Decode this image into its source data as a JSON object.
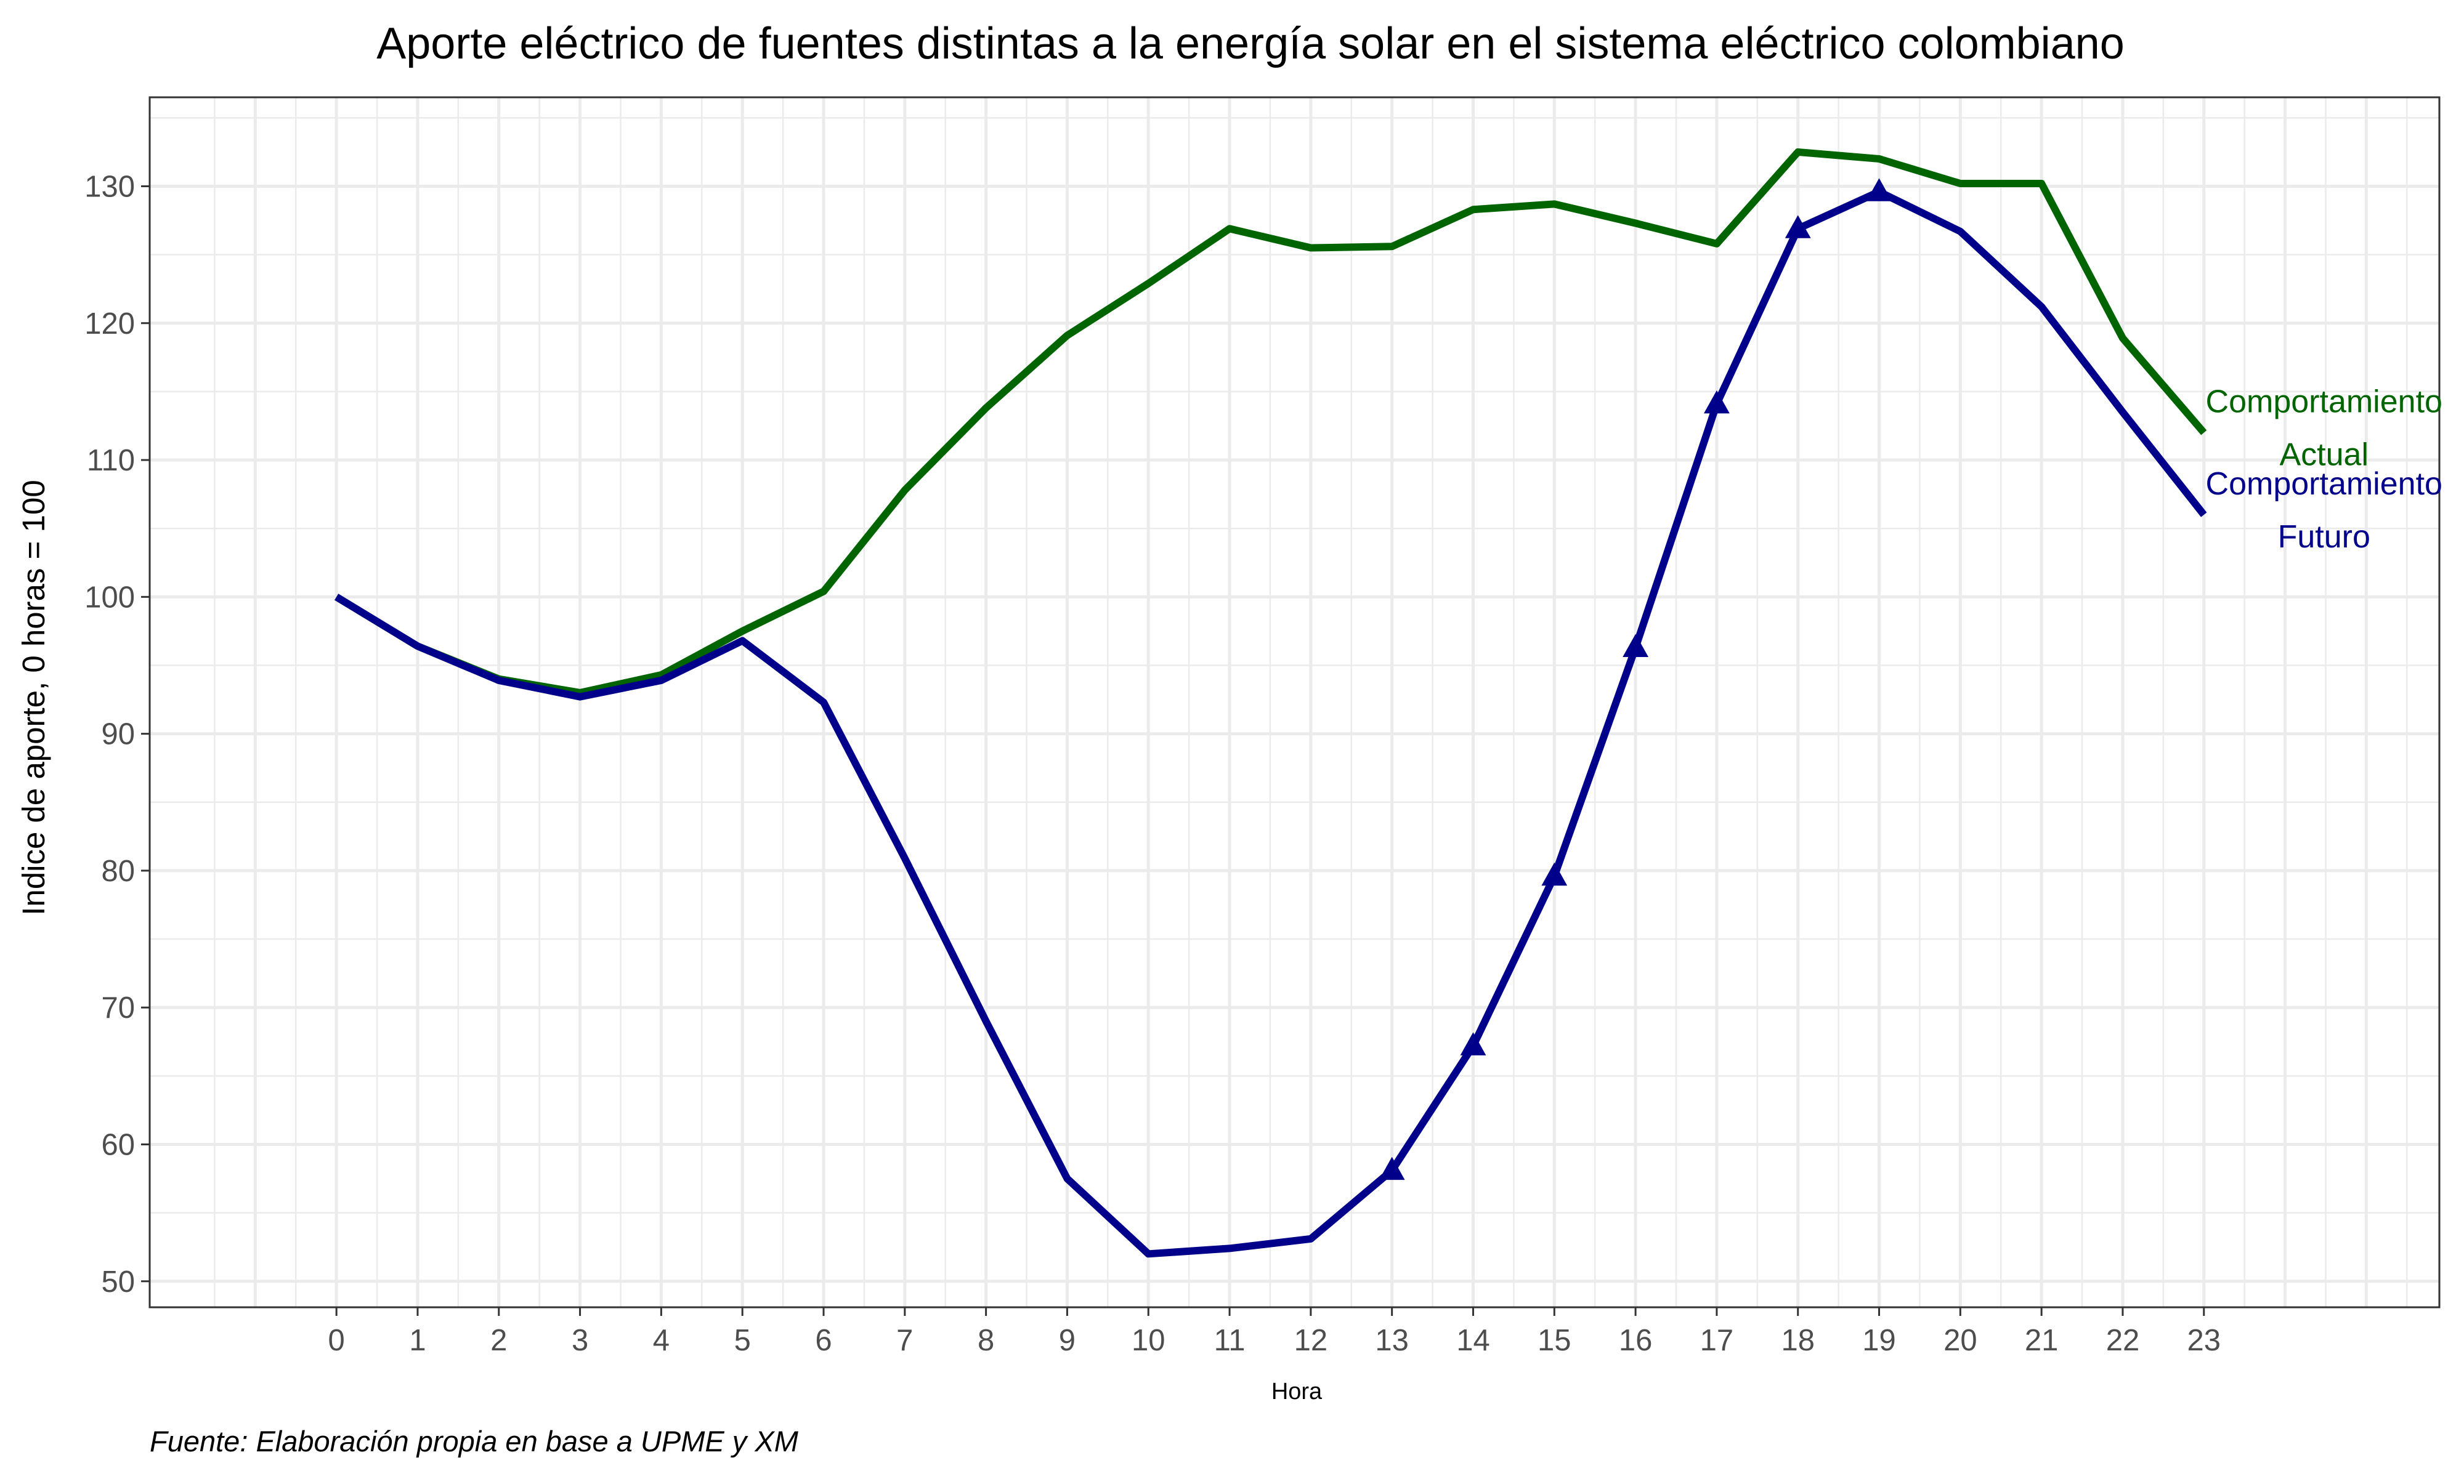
{
  "chart_data": {
    "type": "line",
    "title": "Aporte eléctrico de fuentes distintas a la energía solar en el sistema eléctrico colombiano",
    "xlabel": "Hora",
    "ylabel": "Indice de aporte, 0 horas = 100",
    "caption": "Fuente: Elaboración propia en base a UPME y XM",
    "x": [
      0,
      1,
      2,
      3,
      4,
      5,
      6,
      7,
      8,
      9,
      10,
      11,
      12,
      13,
      14,
      15,
      16,
      17,
      18,
      19,
      20,
      21,
      22,
      23
    ],
    "xlim": [
      -2.3,
      25.9
    ],
    "ylim": [
      48.1,
      136.5
    ],
    "yticks": [
      50,
      60,
      70,
      80,
      90,
      100,
      110,
      120,
      130
    ],
    "grid": true,
    "series": [
      {
        "name": "Comportamiento Actual",
        "label_lines": [
          "Comportamiento",
          "Actual"
        ],
        "color": "#006400",
        "marker": "none",
        "values": [
          100.0,
          96.4,
          94.0,
          93.0,
          94.3,
          97.5,
          100.4,
          107.8,
          113.8,
          119.1,
          122.9,
          126.9,
          125.5,
          125.6,
          128.3,
          128.7,
          127.3,
          125.8,
          132.5,
          132.0,
          130.2,
          130.2,
          118.9,
          112.0
        ]
      },
      {
        "name": "Comportamiento Futuro",
        "label_lines": [
          "Comportamiento",
          "Futuro"
        ],
        "color": "#00008b",
        "marker": "triangle",
        "marker_range": [
          13,
          19
        ],
        "values": [
          100.0,
          96.4,
          93.9,
          92.7,
          93.9,
          96.8,
          92.3,
          80.9,
          69.0,
          57.5,
          52.0,
          52.4,
          53.1,
          58.1,
          67.2,
          79.6,
          96.3,
          114.1,
          126.9,
          129.6,
          126.7,
          121.2,
          113.5,
          106.0
        ]
      }
    ]
  }
}
